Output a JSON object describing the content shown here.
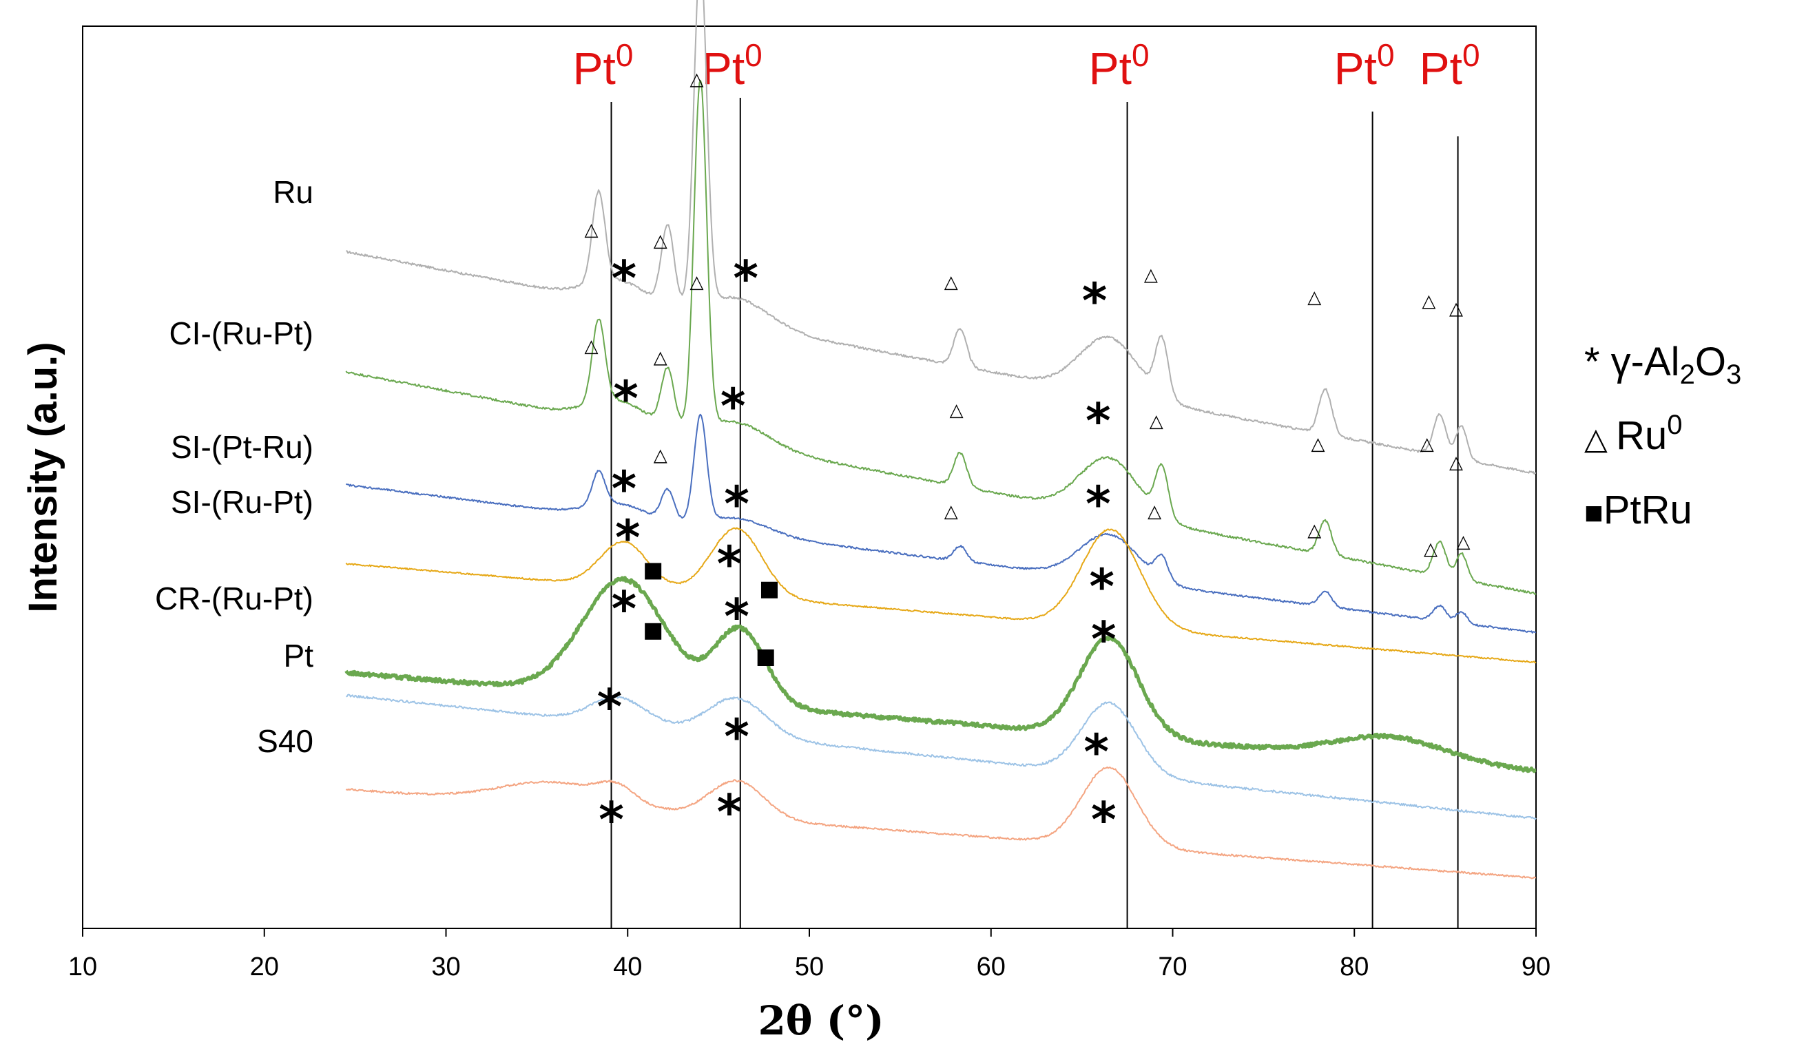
{
  "chart_data": {
    "type": "line",
    "title": "",
    "xlabel": "2θ (°)",
    "ylabel": "Intensity (a.u.)",
    "xlim": [
      10,
      90
    ],
    "xticks": [
      10,
      20,
      30,
      40,
      50,
      60,
      70,
      80,
      90
    ],
    "grid": false,
    "series": [
      {
        "name": "Ru",
        "color": "#b0b0b0",
        "baseline": 9.0,
        "slope": -0.045,
        "noise": 0.03,
        "width": 2,
        "peaks": [
          [
            38.4,
            1.2,
            0.35
          ],
          [
            42.2,
            1.05,
            0.35
          ],
          [
            44.0,
            4.6,
            0.35
          ],
          [
            58.3,
            0.5,
            0.35
          ],
          [
            69.4,
            0.75,
            0.35
          ],
          [
            78.4,
            0.6,
            0.35
          ],
          [
            84.7,
            0.55,
            0.35
          ],
          [
            85.9,
            0.45,
            0.3
          ],
          [
            39.5,
            0.3,
            1.6
          ],
          [
            46.0,
            0.35,
            1.8
          ],
          [
            66.5,
            0.75,
            1.6
          ]
        ]
      },
      {
        "name": "CI-(Ru-Pt)",
        "color": "#6aa84f",
        "baseline": 7.4,
        "slope": -0.045,
        "noise": 0.03,
        "width": 2,
        "peaks": [
          [
            38.4,
            1.1,
            0.35
          ],
          [
            42.2,
            0.75,
            0.35
          ],
          [
            44.0,
            4.6,
            0.35
          ],
          [
            58.3,
            0.45,
            0.35
          ],
          [
            69.4,
            0.65,
            0.35
          ],
          [
            78.4,
            0.45,
            0.35
          ],
          [
            84.7,
            0.45,
            0.35
          ],
          [
            85.9,
            0.35,
            0.3
          ],
          [
            39.5,
            0.3,
            1.6
          ],
          [
            46.0,
            0.3,
            1.8
          ],
          [
            66.5,
            0.75,
            1.6
          ]
        ]
      },
      {
        "name": "SI-(Pt-Ru)",
        "color": "#4a6fbf",
        "baseline": 5.9,
        "slope": -0.03,
        "noise": 0.025,
        "width": 2,
        "peaks": [
          [
            38.4,
            0.45,
            0.35
          ],
          [
            42.2,
            0.4,
            0.35
          ],
          [
            44.0,
            1.4,
            0.35
          ],
          [
            58.3,
            0.2,
            0.35
          ],
          [
            69.4,
            0.3,
            0.35
          ],
          [
            78.4,
            0.2,
            0.35
          ],
          [
            84.7,
            0.2,
            0.35
          ],
          [
            85.9,
            0.15,
            0.3
          ],
          [
            39.5,
            0.2,
            1.6
          ],
          [
            46.0,
            0.2,
            1.8
          ],
          [
            66.5,
            0.6,
            1.6
          ]
        ]
      },
      {
        "name": "SI-(Ru-Pt)",
        "color": "#e6a817",
        "baseline": 4.85,
        "slope": -0.02,
        "noise": 0.02,
        "width": 2,
        "peaks": [
          [
            39.8,
            0.6,
            1.3
          ],
          [
            46.0,
            0.9,
            1.4
          ],
          [
            66.6,
            1.3,
            1.6
          ]
        ]
      },
      {
        "name": "Pt",
        "color": "#6aa84f",
        "baseline": 3.4,
        "slope": -0.02,
        "noise": 0.05,
        "width": 5,
        "peaks": [
          [
            39.8,
            1.55,
            2.3
          ],
          [
            46.2,
            1.0,
            1.4
          ],
          [
            66.5,
            1.3,
            1.6
          ],
          [
            82.0,
            0.3,
            3.0
          ]
        ]
      },
      {
        "name": "CR-(Ru-Pt)",
        "color": "#9dc3e6",
        "baseline": 3.1,
        "slope": -0.025,
        "noise": 0.03,
        "width": 2,
        "peaks": [
          [
            39.5,
            0.35,
            1.5
          ],
          [
            46.0,
            0.5,
            1.6
          ],
          [
            66.5,
            0.95,
            1.5
          ]
        ]
      },
      {
        "name": "S40",
        "color": "#f4a582",
        "baseline": 1.85,
        "slope": -0.018,
        "noise": 0.025,
        "width": 2,
        "peaks": [
          [
            36.0,
            0.3,
            3.0
          ],
          [
            39.4,
            0.2,
            1.0
          ],
          [
            46.0,
            0.5,
            1.5
          ],
          [
            66.5,
            1.05,
            1.5
          ]
        ]
      }
    ],
    "trace_labels": [
      "Ru",
      "CI-(Ru-Pt)",
      "SI-(Pt-Ru)",
      "SI-(Ru-Pt)",
      "CR-(Ru-Pt)",
      "Pt",
      "S40"
    ],
    "reference_lines": [
      {
        "x": 39.1,
        "label": "Pt"
      },
      {
        "x": 46.2,
        "label": "Pt"
      },
      {
        "x": 67.5,
        "label": "Pt"
      },
      {
        "x": 81.0,
        "label": "Pt"
      },
      {
        "x": 85.7,
        "label": "Pt"
      }
    ],
    "reference_superscript": "0",
    "markers": {
      "gamma_alumina": [
        {
          "x": 39.8,
          "y": 8.7
        },
        {
          "x": 46.5,
          "y": 8.7
        },
        {
          "x": 65.7,
          "y": 8.4
        },
        {
          "x": 39.9,
          "y": 7.1
        },
        {
          "x": 45.8,
          "y": 7.0
        },
        {
          "x": 65.9,
          "y": 6.8
        },
        {
          "x": 39.8,
          "y": 5.9
        },
        {
          "x": 46.0,
          "y": 5.7
        },
        {
          "x": 65.9,
          "y": 5.7
        },
        {
          "x": 40.0,
          "y": 5.25
        },
        {
          "x": 45.6,
          "y": 4.9
        },
        {
          "x": 66.1,
          "y": 4.6
        },
        {
          "x": 39.8,
          "y": 4.3
        },
        {
          "x": 46.0,
          "y": 4.2
        },
        {
          "x": 66.2,
          "y": 3.9
        },
        {
          "x": 39.0,
          "y": 3.0
        },
        {
          "x": 46.0,
          "y": 2.6
        },
        {
          "x": 65.8,
          "y": 2.4
        },
        {
          "x": 39.1,
          "y": 1.5
        },
        {
          "x": 45.6,
          "y": 1.6
        },
        {
          "x": 66.2,
          "y": 1.5
        }
      ],
      "ru0": [
        {
          "x": 38.0,
          "y": 9.3
        },
        {
          "x": 41.8,
          "y": 9.15
        },
        {
          "x": 43.8,
          "y": 11.3
        },
        {
          "x": 57.8,
          "y": 8.6
        },
        {
          "x": 68.8,
          "y": 8.7
        },
        {
          "x": 77.8,
          "y": 8.4
        },
        {
          "x": 84.1,
          "y": 8.35
        },
        {
          "x": 85.6,
          "y": 8.25
        },
        {
          "x": 38.0,
          "y": 7.75
        },
        {
          "x": 41.8,
          "y": 7.6
        },
        {
          "x": 43.8,
          "y": 8.6
        },
        {
          "x": 58.1,
          "y": 6.9
        },
        {
          "x": 69.1,
          "y": 6.75
        },
        {
          "x": 78.0,
          "y": 6.45
        },
        {
          "x": 84.0,
          "y": 6.45
        },
        {
          "x": 85.6,
          "y": 6.2
        },
        {
          "x": 41.8,
          "y": 6.3
        },
        {
          "x": 57.8,
          "y": 5.55
        },
        {
          "x": 69.0,
          "y": 5.55
        },
        {
          "x": 77.8,
          "y": 5.3
        },
        {
          "x": 84.2,
          "y": 5.05
        },
        {
          "x": 86.0,
          "y": 5.15
        }
      ],
      "ptru": [
        {
          "x": 41.4,
          "y": 4.75
        },
        {
          "x": 47.8,
          "y": 4.5
        },
        {
          "x": 41.4,
          "y": 3.95
        },
        {
          "x": 47.6,
          "y": 3.6
        }
      ]
    },
    "legend": {
      "placement": "right",
      "entries": [
        {
          "symbol": "*",
          "label": "γ-Al",
          "sub1": "2",
          "mid": "O",
          "sub2": "3"
        },
        {
          "symbol": "△",
          "label": "Ru",
          "sup": "0"
        },
        {
          "symbol": "■",
          "label": "PtRu"
        }
      ]
    }
  }
}
